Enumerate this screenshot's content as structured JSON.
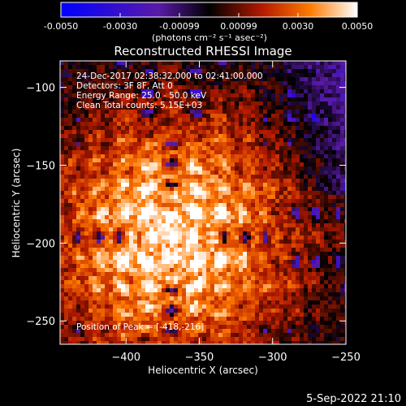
{
  "chart_data": {
    "type": "heatmap",
    "title": "Reconstructed RHESSI Image",
    "xlabel": "Heliocentric X (arcsec)",
    "ylabel": "Heliocentric Y (arcsec)",
    "xlim": [
      -445,
      -250
    ],
    "ylim": [
      -265,
      -83
    ],
    "xticks": [
      -400,
      -350,
      -300,
      -250
    ],
    "yticks": [
      -100,
      -150,
      -200,
      -250
    ],
    "colorbar": {
      "min": -0.005,
      "max": 0.005,
      "ticks": [
        "-0.0050",
        "-0.0030",
        "-0.00099",
        "0.00099",
        "0.0030",
        "0.0050"
      ],
      "units_label": "(photons cm⁻² s⁻¹ asec⁻²)",
      "colormap": [
        "#0000ff",
        "#5a1aa8",
        "#000000",
        "#b41a00",
        "#ff7a00",
        "#ffffff"
      ]
    },
    "annotations": [
      "24-Dec-2017 02:38:32.000 to 02:41:00.000",
      "Detectors: 3F 8F, Att 0",
      "Energy Range: 25.0 - 50.0 keV",
      "Clean     Total counts: 5.15E+03",
      "Position of Peak = [-418,-216]"
    ],
    "peak": {
      "x": -418,
      "y": -216
    },
    "source_center": {
      "x": -370,
      "y": -195
    }
  },
  "footer": {
    "timestamp": "5-Sep-2022 21:10"
  }
}
